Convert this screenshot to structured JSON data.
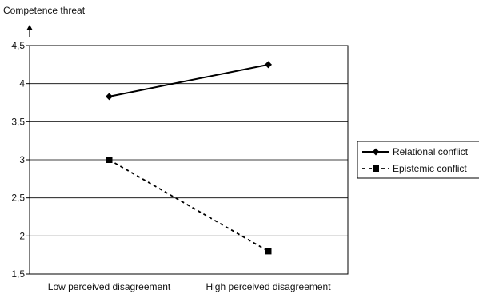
{
  "chart_data": {
    "type": "line",
    "title": "",
    "ylabel": "Competence threat",
    "xlabel": "",
    "categories": [
      "Low perceived disagreement",
      "High perceived disagreement"
    ],
    "ylim": [
      1.5,
      4.5
    ],
    "yticks": [
      "1,5",
      "2",
      "2,5",
      "3",
      "3,5",
      "4",
      "4,5"
    ],
    "ytick_values": [
      1.5,
      2,
      2.5,
      3,
      3.5,
      4,
      4.5
    ],
    "grid": true,
    "legend_position": "right",
    "series": [
      {
        "name": "Relational conflict",
        "values": [
          3.83,
          4.25
        ],
        "marker": "diamond",
        "line_style": "solid",
        "color": "#000000"
      },
      {
        "name": "Epistemic conflict",
        "values": [
          3.0,
          1.8
        ],
        "marker": "square",
        "line_style": "dotted",
        "color": "#000000"
      }
    ]
  }
}
